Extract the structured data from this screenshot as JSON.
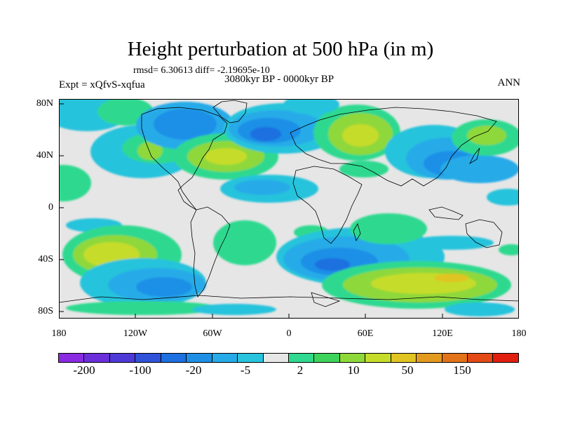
{
  "title": "Height perturbation at 500 hPa (in m)",
  "stats": "rmsd= 6.30613 diff= -2.19695e-10",
  "experiment": "Expt = xQfvS-xqfua",
  "period": "3080kyr BP - 0000kyr BP",
  "season": "ANN",
  "lat_labels": [
    "80N",
    "40N",
    "0",
    "40S",
    "80S"
  ],
  "lon_labels": [
    "180",
    "120W",
    "60W",
    "0",
    "60E",
    "120E",
    "180"
  ],
  "colorbar": {
    "colors": [
      "#8a2be2",
      "#6a2fd9",
      "#4d3ad6",
      "#2f52d8",
      "#1e6fe0",
      "#1f8fe6",
      "#26abe8",
      "#28c3dc",
      "#e6e6e6",
      "#2fd98f",
      "#3ed35a",
      "#8fd83a",
      "#c6dc2a",
      "#e0c422",
      "#e49a1e",
      "#e27318",
      "#e34a16",
      "#e01f10"
    ],
    "labels": [
      "-200",
      "-100",
      "-20",
      "-5",
      "2",
      "10",
      "50",
      "150"
    ]
  }
}
